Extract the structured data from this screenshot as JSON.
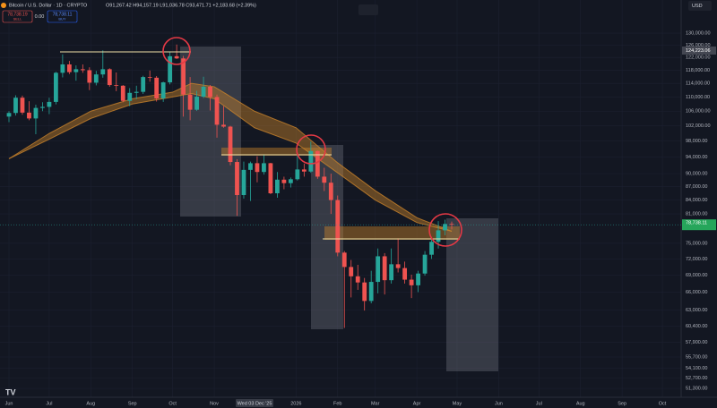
{
  "header": {
    "symbol": "Bitcoin / U.S. Dollar · 1D · CRYPTO",
    "ohlc": "O91,267.42 H94,157.19 L91,036.78 C93,471.71 +2,183.68 (+2.39%)",
    "sell_price": "78,738.19",
    "sell": "SELL",
    "spread": "0.00",
    "buy_price": "78,738.11",
    "buy": "BUY",
    "currency": "USD"
  },
  "chart_data": {
    "type": "candlestick",
    "log_scale": true,
    "grid": true,
    "up_color": "#26a69a",
    "down_color": "#ef5350",
    "crosshair_label": "Wed 03 Dec '25",
    "marker_label": "124,223.06",
    "last_price_label": "78,738.11",
    "ylim": [
      50600,
      141800
    ],
    "yticks": [
      {
        "value": 130000,
        "label": "130,000.00"
      },
      {
        "value": 126000,
        "label": "126,000.00"
      },
      {
        "value": 122000,
        "label": "122,000.00"
      },
      {
        "value": 118000,
        "label": "118,000.00"
      },
      {
        "value": 114000,
        "label": "114,000.00"
      },
      {
        "value": 110000,
        "label": "110,000.00"
      },
      {
        "value": 106000,
        "label": "106,000.00"
      },
      {
        "value": 102000,
        "label": "102,000.00"
      },
      {
        "value": 98000,
        "label": "98,000.00"
      },
      {
        "value": 94000,
        "label": "94,000.00"
      },
      {
        "value": 90000,
        "label": "90,000.00"
      },
      {
        "value": 87000,
        "label": "87,000.00"
      },
      {
        "value": 84000,
        "label": "84,000.00"
      },
      {
        "value": 81000,
        "label": "81,000.00"
      },
      {
        "value": 75000,
        "label": "75,000.00"
      },
      {
        "value": 72000,
        "label": "72,000.00"
      },
      {
        "value": 69000,
        "label": "69,000.00"
      },
      {
        "value": 66000,
        "label": "66,000.00"
      },
      {
        "value": 63000,
        "label": "63,000.00"
      },
      {
        "value": 60400,
        "label": "60,400.00"
      },
      {
        "value": 57900,
        "label": "57,900.00"
      },
      {
        "value": 55700,
        "label": "55,700.00"
      },
      {
        "value": 54100,
        "label": "54,100.00"
      },
      {
        "value": 52700,
        "label": "52,700.00"
      },
      {
        "value": 51300,
        "label": "51,300.00"
      }
    ],
    "xticks": [
      {
        "value": "2025-06-01",
        "label": "Jun"
      },
      {
        "value": "2025-07-01",
        "label": "Jul"
      },
      {
        "value": "2025-08-01",
        "label": "Aug"
      },
      {
        "value": "2025-09-01",
        "label": "Sep"
      },
      {
        "value": "2025-10-01",
        "label": "Oct"
      },
      {
        "value": "2025-11-01",
        "label": "Nov"
      },
      {
        "value": "2026-01-01",
        "label": "2026"
      },
      {
        "value": "2026-02-01",
        "label": "Feb"
      },
      {
        "value": "2026-03-01",
        "label": "Mar"
      },
      {
        "value": "2026-04-01",
        "label": "Apr"
      },
      {
        "value": "2026-05-01",
        "label": "May"
      },
      {
        "value": "2026-06-01",
        "label": "Jun"
      },
      {
        "value": "2026-07-01",
        "label": "Jul"
      },
      {
        "value": "2026-08-01",
        "label": "Aug"
      },
      {
        "value": "2026-09-01",
        "label": "Sep"
      },
      {
        "value": "2026-10-01",
        "label": "Oct"
      }
    ],
    "x": [
      "2025-06-01",
      "2025-06-06",
      "2025-06-11",
      "2025-06-16",
      "2025-06-21",
      "2025-06-26",
      "2025-07-01",
      "2025-07-06",
      "2025-07-11",
      "2025-07-16",
      "2025-07-21",
      "2025-07-26",
      "2025-07-31",
      "2025-08-05",
      "2025-08-10",
      "2025-08-15",
      "2025-08-20",
      "2025-08-25",
      "2025-08-30",
      "2025-09-04",
      "2025-09-09",
      "2025-09-14",
      "2025-09-19",
      "2025-09-24",
      "2025-09-29",
      "2025-10-04",
      "2025-10-09",
      "2025-10-14",
      "2025-10-19",
      "2025-10-24",
      "2025-10-29",
      "2025-11-03",
      "2025-11-08",
      "2025-11-13",
      "2025-11-18",
      "2025-11-23",
      "2025-11-28",
      "2025-12-03",
      "2025-12-08",
      "2025-12-13",
      "2025-12-18",
      "2025-12-23",
      "2025-12-28",
      "2026-01-02",
      "2026-01-07",
      "2026-01-12",
      "2026-01-17",
      "2026-01-22",
      "2026-01-27",
      "2026-02-01",
      "2026-02-06",
      "2026-02-11",
      "2026-02-16",
      "2026-02-21",
      "2026-02-26",
      "2026-03-03",
      "2026-03-08",
      "2026-03-13",
      "2026-03-18",
      "2026-03-23",
      "2026-03-28",
      "2026-04-02",
      "2026-04-07",
      "2026-04-12",
      "2026-04-17",
      "2026-04-22",
      "2026-04-27"
    ],
    "open": [
      104500,
      105500,
      109800,
      105600,
      104000,
      106900,
      107200,
      108600,
      117200,
      119800,
      117400,
      118300,
      118000,
      114200,
      116700,
      118300,
      113500,
      113300,
      108900,
      111200,
      111500,
      115900,
      115700,
      109600,
      114300,
      122400,
      121700,
      110700,
      106400,
      110100,
      113000,
      110000,
      102300,
      101800,
      92800,
      85100,
      90900,
      92500,
      90400,
      92500,
      85500,
      88600,
      87800,
      88700,
      91000,
      90500,
      95500,
      89300,
      87900,
      84000,
      73200,
      70500,
      68800,
      67700,
      64500,
      67800,
      72500,
      68100,
      71000,
      70300,
      68200,
      67200,
      69300,
      72800,
      75300,
      77600,
      78900
    ],
    "high": [
      106000,
      110500,
      110400,
      108800,
      107800,
      108500,
      109800,
      117500,
      123000,
      120900,
      119500,
      119800,
      118900,
      117800,
      124300,
      118600,
      117300,
      113500,
      112600,
      113300,
      116300,
      117900,
      116200,
      114500,
      123900,
      126200,
      122500,
      115900,
      111800,
      116000,
      113500,
      110700,
      107400,
      102000,
      93500,
      92900,
      92900,
      94200,
      94600,
      92600,
      90400,
      89300,
      89100,
      94800,
      92400,
      97900,
      95600,
      91400,
      90000,
      85000,
      73500,
      71800,
      70900,
      68500,
      69800,
      74000,
      73100,
      74000,
      76000,
      71500,
      69100,
      69800,
      73500,
      75800,
      79500,
      79800,
      79400
    ],
    "low": [
      103000,
      104800,
      105000,
      103500,
      99800,
      106000,
      105200,
      107900,
      115800,
      116800,
      114800,
      117200,
      112000,
      113400,
      115700,
      113000,
      111700,
      108500,
      107400,
      109400,
      110900,
      114500,
      108700,
      108600,
      113700,
      121500,
      104500,
      103500,
      106100,
      109700,
      106200,
      98900,
      101500,
      92000,
      80600,
      84300,
      83800,
      88000,
      89800,
      85300,
      84500,
      86400,
      86800,
      88400,
      89300,
      90200,
      88800,
      86000,
      81000,
      72500,
      60100,
      65100,
      66400,
      62900,
      64100,
      65800,
      65600,
      67500,
      69500,
      67500,
      65000,
      66000,
      68900,
      72000,
      74000,
      76600,
      77800
    ],
    "close": [
      105500,
      109800,
      105600,
      104000,
      106900,
      107200,
      108600,
      117200,
      119800,
      117400,
      118300,
      118000,
      114200,
      116700,
      118300,
      113500,
      113300,
      108900,
      111200,
      111500,
      115900,
      115700,
      109600,
      114300,
      122400,
      121700,
      110700,
      106400,
      110100,
      113000,
      110000,
      102300,
      101800,
      92800,
      85100,
      90900,
      92500,
      90400,
      92500,
      85500,
      88600,
      87800,
      88700,
      91000,
      90500,
      95500,
      89300,
      87900,
      84000,
      73200,
      70500,
      68800,
      67700,
      64500,
      67800,
      72500,
      68100,
      71000,
      70300,
      68200,
      67200,
      69300,
      72800,
      75300,
      77600,
      78900,
      78738.11
    ],
    "ribbon": {
      "color": "#c8822a",
      "x": [
        "2025-06-01",
        "2025-07-01",
        "2025-08-01",
        "2025-09-01",
        "2025-10-01",
        "2025-10-15",
        "2025-11-01",
        "2025-12-01",
        "2026-01-01",
        "2026-02-01",
        "2026-03-01",
        "2026-04-01",
        "2026-04-27"
      ],
      "upper": [
        93600,
        100000,
        106000,
        109500,
        111400,
        114000,
        113000,
        106000,
        101500,
        92600,
        86100,
        80200,
        77400
      ],
      "lower": [
        93600,
        98500,
        104000,
        108000,
        110000,
        111000,
        109500,
        101500,
        97500,
        90200,
        84000,
        79200,
        77400
      ]
    }
  }
}
